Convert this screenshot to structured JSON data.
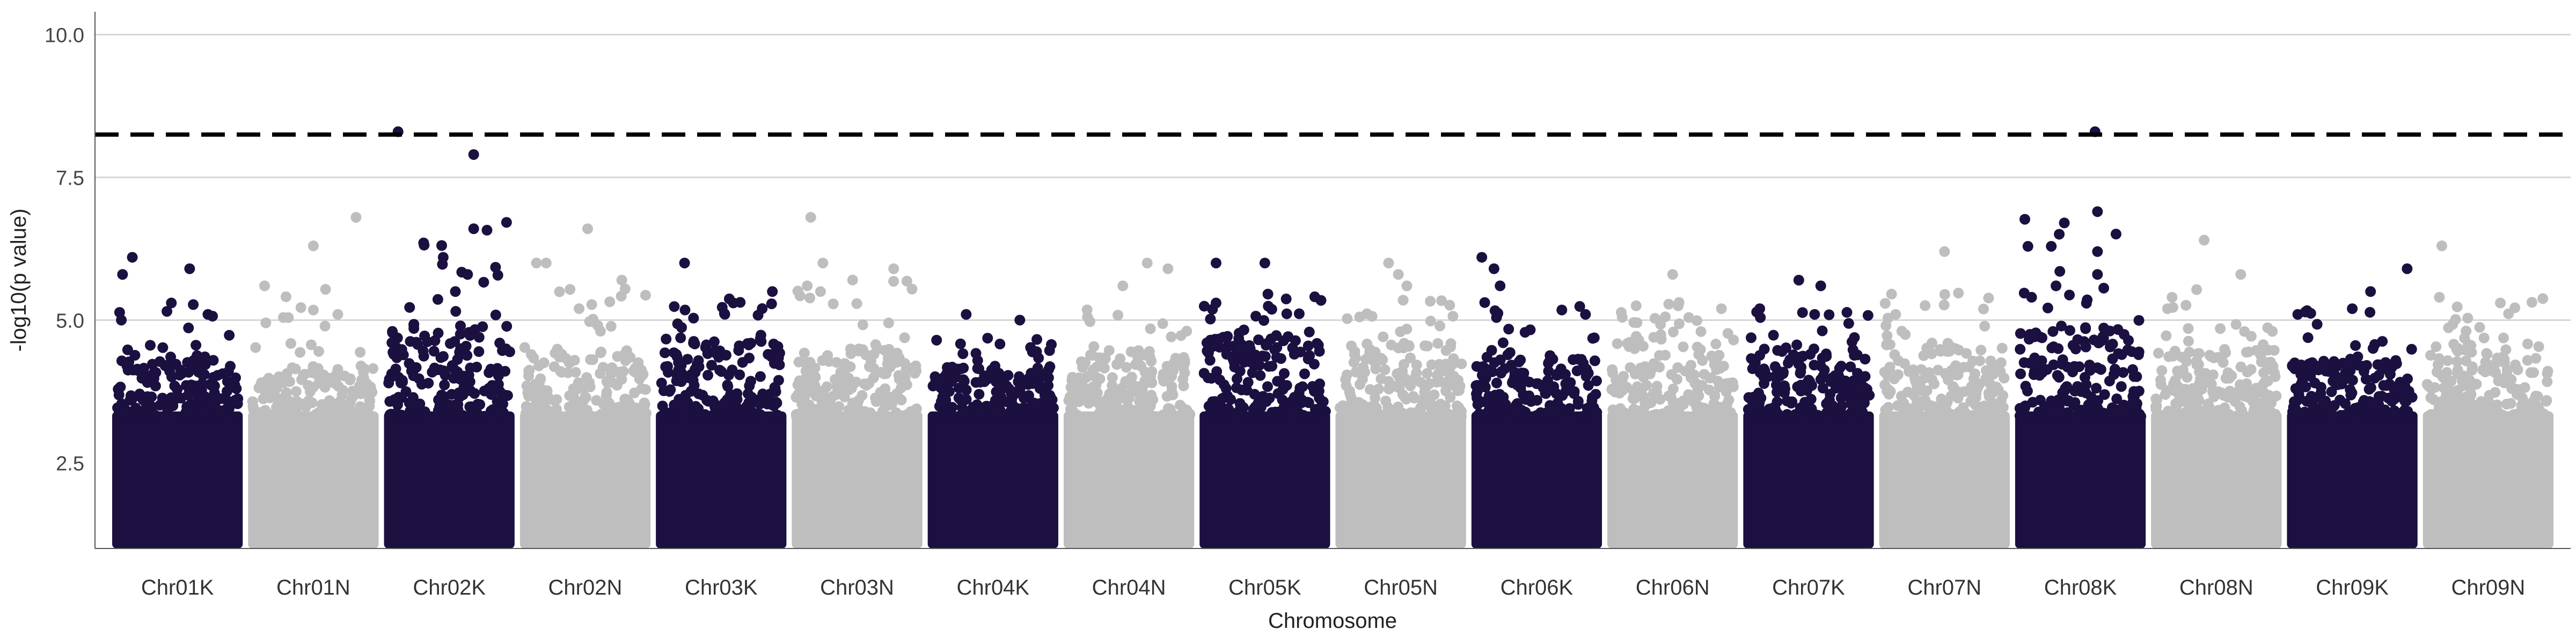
{
  "chart_data": {
    "type": "scatter",
    "subtype": "manhattan",
    "title": "",
    "xlabel": "Chromosome",
    "ylabel": "-log10(p value)",
    "ylim": [
      1.0,
      10.4
    ],
    "yticks": [
      "2.5",
      "5.0",
      "7.5",
      "10.0"
    ],
    "ytick_values": [
      2.5,
      5.0,
      7.5,
      10.0
    ],
    "grid": "horizontal major lines",
    "legend": "none",
    "threshold": 8.25,
    "threshold_style": "dashed black",
    "colors": {
      "odd": "#1b1040",
      "even": "#bebebe",
      "grid": "#d6d6d6",
      "threshold": "#000000"
    },
    "categories": [
      "Chr01K",
      "Chr01N",
      "Chr02K",
      "Chr02N",
      "Chr03K",
      "Chr03N",
      "Chr04K",
      "Chr04N",
      "Chr05K",
      "Chr05N",
      "Chr06K",
      "Chr06N",
      "Chr07K",
      "Chr07N",
      "Chr08K",
      "Chr08N",
      "Chr09K",
      "Chr09N"
    ],
    "chromosomes": [
      {
        "name": "Chr01K",
        "max_logp": 6.1,
        "dense_top": 4.3,
        "top_points": [
          [
            0.05,
            5.8
          ],
          [
            0.13,
            6.1
          ],
          [
            0.6,
            5.9
          ],
          [
            0.04,
            5.0
          ],
          [
            0.45,
            5.3
          ],
          [
            0.75,
            5.1
          ]
        ]
      },
      {
        "name": "Chr01N",
        "max_logp": 6.8,
        "dense_top": 4.2,
        "top_points": [
          [
            0.1,
            5.6
          ],
          [
            0.5,
            6.3
          ],
          [
            0.85,
            6.8
          ],
          [
            0.7,
            5.1
          ]
        ]
      },
      {
        "name": "Chr02K",
        "max_logp": 8.3,
        "dense_top": 5.0,
        "top_points": [
          [
            0.08,
            8.3
          ],
          [
            0.7,
            7.9
          ],
          [
            0.7,
            6.6
          ],
          [
            0.45,
            6.1
          ],
          [
            0.65,
            5.8
          ],
          [
            0.55,
            5.5
          ]
        ]
      },
      {
        "name": "Chr02N",
        "max_logp": 6.6,
        "dense_top": 4.5,
        "top_points": [
          [
            0.1,
            6.0
          ],
          [
            0.18,
            6.0
          ],
          [
            0.52,
            6.6
          ],
          [
            0.8,
            5.7
          ],
          [
            0.45,
            5.2
          ]
        ]
      },
      {
        "name": "Chr03K",
        "max_logp": 6.0,
        "dense_top": 4.7,
        "top_points": [
          [
            0.2,
            6.0
          ],
          [
            0.92,
            5.5
          ],
          [
            0.6,
            5.3
          ]
        ]
      },
      {
        "name": "Chr03N",
        "max_logp": 6.8,
        "dense_top": 4.5,
        "top_points": [
          [
            0.12,
            6.8
          ],
          [
            0.22,
            6.0
          ],
          [
            0.8,
            5.9
          ],
          [
            0.2,
            5.5
          ]
        ]
      },
      {
        "name": "Chr04K",
        "max_logp": 5.1,
        "dense_top": 4.2,
        "top_points": [
          [
            0.28,
            5.1
          ],
          [
            0.72,
            5.0
          ]
        ]
      },
      {
        "name": "Chr04N",
        "max_logp": 6.0,
        "dense_top": 4.4,
        "top_points": [
          [
            0.45,
            5.6
          ],
          [
            0.65,
            6.0
          ],
          [
            0.82,
            5.9
          ]
        ]
      },
      {
        "name": "Chr05K",
        "max_logp": 6.0,
        "dense_top": 4.8,
        "top_points": [
          [
            0.1,
            6.0
          ],
          [
            0.5,
            6.0
          ],
          [
            0.1,
            5.3
          ]
        ]
      },
      {
        "name": "Chr05N",
        "max_logp": 6.0,
        "dense_top": 4.6,
        "top_points": [
          [
            0.4,
            6.0
          ],
          [
            0.48,
            5.8
          ],
          [
            0.55,
            5.6
          ]
        ]
      },
      {
        "name": "Chr06K",
        "max_logp": 6.1,
        "dense_top": 4.4,
        "top_points": [
          [
            0.05,
            6.1
          ],
          [
            0.15,
            5.9
          ],
          [
            0.2,
            5.6
          ],
          [
            0.9,
            5.1
          ]
        ]
      },
      {
        "name": "Chr06N",
        "max_logp": 5.8,
        "dense_top": 4.8,
        "top_points": [
          [
            0.5,
            5.8
          ],
          [
            0.9,
            5.2
          ]
        ]
      },
      {
        "name": "Chr07K",
        "max_logp": 5.7,
        "dense_top": 4.5,
        "top_points": [
          [
            0.1,
            5.2
          ],
          [
            0.42,
            5.7
          ],
          [
            0.6,
            5.6
          ],
          [
            0.55,
            5.1
          ]
        ]
      },
      {
        "name": "Chr07N",
        "max_logp": 6.2,
        "dense_top": 4.6,
        "top_points": [
          [
            0.5,
            6.2
          ],
          [
            0.1,
            5.1
          ]
        ]
      },
      {
        "name": "Chr08K",
        "max_logp": 8.3,
        "dense_top": 4.9,
        "top_points": [
          [
            0.62,
            8.3
          ],
          [
            0.64,
            6.9
          ],
          [
            0.64,
            6.2
          ],
          [
            0.64,
            5.8
          ],
          [
            0.3,
            5.6
          ],
          [
            0.1,
            5.4
          ]
        ]
      },
      {
        "name": "Chr08N",
        "max_logp": 6.4,
        "dense_top": 4.5,
        "top_points": [
          [
            0.4,
            6.4
          ],
          [
            0.7,
            5.8
          ],
          [
            0.1,
            5.2
          ]
        ]
      },
      {
        "name": "Chr09K",
        "max_logp": 5.9,
        "dense_top": 4.3,
        "top_points": [
          [
            0.65,
            5.5
          ],
          [
            0.95,
            5.9
          ],
          [
            0.5,
            5.2
          ]
        ]
      },
      {
        "name": "Chr09N",
        "max_logp": 6.3,
        "dense_top": 4.6,
        "top_points": [
          [
            0.1,
            5.4
          ],
          [
            0.12,
            6.3
          ],
          [
            0.6,
            5.3
          ]
        ]
      }
    ]
  }
}
